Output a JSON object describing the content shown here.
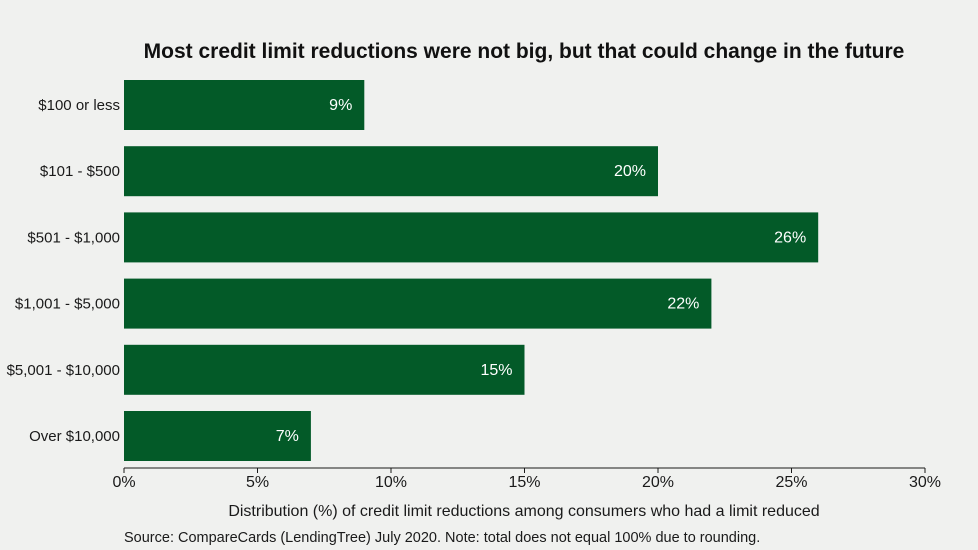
{
  "chart_data": {
    "type": "bar",
    "orientation": "horizontal",
    "title": "Most credit limit reductions were not big, but that could change in the future",
    "categories": [
      "$100 or less",
      "$101 - $500",
      "$501 - $1,000",
      "$1,001 - $5,000",
      "$5,001 - $10,000",
      "Over $10,000"
    ],
    "values": [
      9,
      20,
      26,
      22,
      15,
      7
    ],
    "value_labels": [
      "9%",
      "20%",
      "26%",
      "22%",
      "15%",
      "7%"
    ],
    "xlabel": "Distribution (%) of credit limit reductions among consumers who had a limit reduced",
    "xlim": [
      0,
      30
    ],
    "x_ticks": [
      0,
      5,
      10,
      15,
      20,
      25,
      30
    ],
    "x_tick_labels": [
      "0%",
      "5%",
      "10%",
      "15%",
      "20%",
      "25%",
      "30%"
    ],
    "source": "Source: CompareCards (LendingTree) July 2020. Note: total does not equal 100% due to rounding.",
    "grid": false,
    "colors": {
      "bar": "#035a28",
      "background": "#f0f1ef",
      "axis": "#1a1a1a"
    }
  }
}
